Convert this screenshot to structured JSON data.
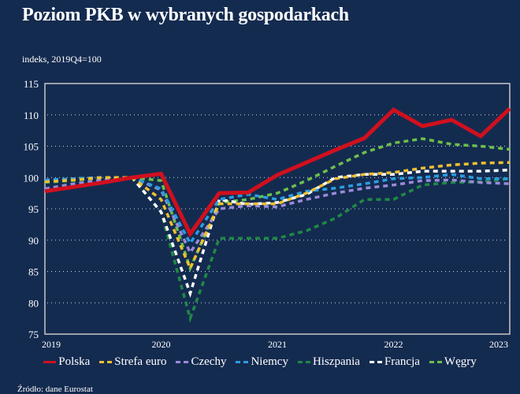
{
  "title": "Poziom PKB w wybranych gospodarkach",
  "unit_label": "indeks, 2019Q4=100",
  "source": "Źródło: dane Eurostat",
  "chart_data": {
    "type": "line",
    "title": "Poziom PKB w wybranych gospodarkach",
    "ylabel": "indeks, 2019Q4=100",
    "ylim": [
      75,
      115
    ],
    "yticks": [
      "75",
      "80",
      "85",
      "90",
      "95",
      "100",
      "105",
      "110",
      "115"
    ],
    "xticks": [
      "2019",
      "2020",
      "2021",
      "2022",
      "2023"
    ],
    "x": [
      "2019Q1",
      "2019Q2",
      "2019Q3",
      "2019Q4",
      "2020Q1",
      "2020Q2",
      "2020Q3",
      "2020Q4",
      "2021Q1",
      "2021Q2",
      "2021Q3",
      "2021Q4",
      "2022Q1",
      "2022Q2",
      "2022Q3",
      "2022Q4",
      "2023Q1"
    ],
    "grid": true,
    "legend_position": "bottom",
    "series": [
      {
        "name": "Polska",
        "color": "#d0101e",
        "style": "solid",
        "values": [
          97.8,
          98.5,
          99.2,
          100,
          100.6,
          91,
          97.5,
          97.6,
          100.4,
          102.4,
          104.4,
          106.3,
          110.8,
          108.2,
          109.2,
          106.6,
          111
        ]
      },
      {
        "name": "Strefa euro",
        "color": "#f0c030",
        "style": "dashed",
        "values": [
          99.3,
          99.6,
          100,
          100,
          96.5,
          85.5,
          95.8,
          95.8,
          95.8,
          97.5,
          99.8,
          100.5,
          100.8,
          101.5,
          102,
          102.3,
          102.4
        ]
      },
      {
        "name": "Czechy",
        "color": "#9a8ad8",
        "style": "dashed",
        "values": [
          98.2,
          99,
          99.6,
          100,
          98,
          88,
          95,
          95.5,
          95.3,
          96.5,
          97.5,
          98.3,
          98.8,
          99.5,
          99.6,
          99.2,
          99
        ]
      },
      {
        "name": "Niemcy",
        "color": "#2a9de0",
        "style": "dashed",
        "values": [
          99.6,
          99.8,
          100,
          100,
          98.2,
          89.5,
          96.5,
          97.3,
          96.5,
          97.8,
          98.3,
          99,
          99.8,
          100,
          100.5,
          99.8,
          99.8
        ]
      },
      {
        "name": "Hiszpania",
        "color": "#1f8a45",
        "style": "dashed",
        "values": [
          99.2,
          99.5,
          100,
          100,
          94.5,
          77.5,
          90.3,
          90.3,
          90.3,
          91.5,
          93.5,
          96.5,
          96.5,
          98.8,
          99.2,
          99.3,
          99.8
        ]
      },
      {
        "name": "Francja",
        "color": "#ffffff",
        "style": "dashed",
        "values": [
          99.5,
          99.8,
          100,
          100,
          94.5,
          81.5,
          96.5,
          95.7,
          96,
          97.3,
          100,
          100.5,
          100.5,
          101,
          101,
          101,
          101.2
        ]
      },
      {
        "name": "Węgry",
        "color": "#6cc04a",
        "style": "dashed",
        "values": [
          99.5,
          99.8,
          100,
          100,
          99.5,
          85.5,
          96,
          96.5,
          97.5,
          99.5,
          101.8,
          104,
          105.5,
          106.2,
          105.3,
          105,
          104.5
        ]
      }
    ]
  }
}
